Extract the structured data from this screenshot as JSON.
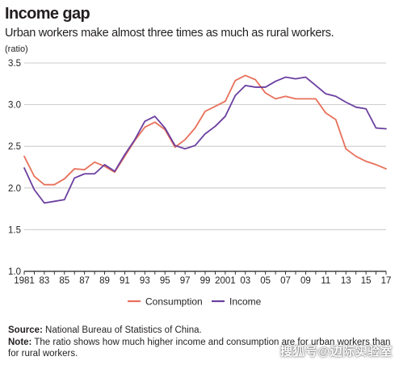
{
  "header": {
    "title": "Income gap",
    "subtitle": "Urban workers make almost three times as much as rural workers.",
    "unit": "(ratio)"
  },
  "footer": {
    "source_label": "Source:",
    "source_text": " National Bureau of Statistics of China.",
    "note_label": "Note:",
    "note_text": " The ratio shows how much higher income and consumption are for urban workers than for rural workers."
  },
  "watermark": "搜狐号@边际实验室",
  "colors": {
    "consumption": "#e8705a",
    "income": "#6b3fa0",
    "gridline": "#bdbdbd",
    "axis": "#231f20"
  },
  "chart_data": {
    "type": "line",
    "title": "Income gap",
    "ylabel": "(ratio)",
    "ylim": [
      1.0,
      3.5
    ],
    "yticks": [
      1.0,
      1.5,
      2.0,
      2.5,
      3.0,
      3.5
    ],
    "ytick_labels": [
      "1.0",
      "1.5",
      "2.0",
      "2.5",
      "3.0",
      "3.5"
    ],
    "xlim": [
      1981,
      2017
    ],
    "xticks": [
      1981,
      1983,
      1985,
      1987,
      1989,
      1991,
      1993,
      1995,
      1997,
      1999,
      2001,
      2003,
      2005,
      2007,
      2009,
      2011,
      2013,
      2015,
      2017
    ],
    "xtick_labels": [
      "1981",
      "83",
      "85",
      "87",
      "89",
      "91",
      "93",
      "95",
      "97",
      "99",
      "2001",
      "03",
      "05",
      "07",
      "09",
      "11",
      "13",
      "15",
      "17"
    ],
    "grid": "horizontal",
    "legend_position": "bottom",
    "x": [
      1981,
      1982,
      1983,
      1984,
      1985,
      1986,
      1987,
      1988,
      1989,
      1990,
      1991,
      1992,
      1993,
      1994,
      1995,
      1996,
      1997,
      1998,
      1999,
      2000,
      2001,
      2002,
      2003,
      2004,
      2005,
      2006,
      2007,
      2008,
      2009,
      2010,
      2011,
      2012,
      2013,
      2014,
      2015,
      2016,
      2017
    ],
    "series": [
      {
        "name": "Consumption",
        "color": "#e8705a",
        "values": [
          2.38,
          2.14,
          2.04,
          2.04,
          2.11,
          2.23,
          2.22,
          2.31,
          2.26,
          2.19,
          2.38,
          2.57,
          2.73,
          2.79,
          2.7,
          2.49,
          2.58,
          2.72,
          2.92,
          2.98,
          3.04,
          3.29,
          3.35,
          3.3,
          3.14,
          3.07,
          3.1,
          3.07,
          3.07,
          3.07,
          2.9,
          2.82,
          2.47,
          2.38,
          2.32,
          2.28,
          2.23
        ]
      },
      {
        "name": "Income",
        "color": "#6b3fa0",
        "values": [
          2.24,
          1.98,
          1.82,
          1.84,
          1.86,
          2.12,
          2.17,
          2.17,
          2.28,
          2.2,
          2.4,
          2.58,
          2.8,
          2.86,
          2.72,
          2.51,
          2.47,
          2.51,
          2.65,
          2.74,
          2.86,
          3.11,
          3.23,
          3.21,
          3.21,
          3.28,
          3.33,
          3.31,
          3.33,
          3.23,
          3.13,
          3.1,
          3.03,
          2.97,
          2.95,
          2.72,
          2.71
        ]
      }
    ]
  }
}
